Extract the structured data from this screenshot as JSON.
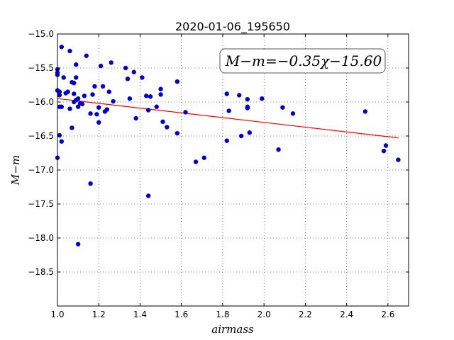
{
  "chart_data": {
    "type": "scatter",
    "title": "2020-01-06_195650",
    "xlabel": "airmass",
    "ylabel": "M−m",
    "xlim": [
      1.0,
      2.7
    ],
    "ylim": [
      -19.0,
      -15.0
    ],
    "y_inverted": true,
    "grid": true,
    "x_ticks": [
      1.0,
      1.2,
      1.4,
      1.6,
      1.8,
      2.0,
      2.2,
      2.4,
      2.6
    ],
    "x_tick_labels": [
      "1.0",
      "1.2",
      "1.4",
      "1.6",
      "1.8",
      "2.0",
      "2.2",
      "2.4",
      "2.6"
    ],
    "y_ticks": [
      -15.0,
      -15.5,
      -16.0,
      -16.5,
      -17.0,
      -17.5,
      -18.0,
      -18.5
    ],
    "y_tick_labels": [
      "−15.0",
      "−15.5",
      "−16.0",
      "−16.5",
      "−17.0",
      "−17.5",
      "−18.0",
      "−18.5"
    ],
    "annotation": "M−m=−0.35χ−15.60",
    "fit": {
      "slope": -0.35,
      "intercept": -15.6,
      "x_range": [
        1.0,
        2.65
      ],
      "color": "#ff0000"
    },
    "point_color": "#0000cc",
    "points": [
      [
        1.0,
        -15.52
      ],
      [
        1.0,
        -15.57
      ],
      [
        1.0,
        -15.6
      ],
      [
        1.0,
        -15.83
      ],
      [
        1.01,
        -15.85
      ],
      [
        1.01,
        -15.9
      ],
      [
        1.01,
        -16.07
      ],
      [
        1.0,
        -16.82
      ],
      [
        1.01,
        -16.49
      ],
      [
        1.02,
        -16.58
      ],
      [
        1.02,
        -15.19
      ],
      [
        1.03,
        -15.64
      ],
      [
        1.04,
        -15.87
      ],
      [
        1.02,
        -16.07
      ],
      [
        1.05,
        -15.85
      ],
      [
        1.06,
        -15.25
      ],
      [
        1.07,
        -15.71
      ],
      [
        1.06,
        -16.1
      ],
      [
        1.07,
        -16.38
      ],
      [
        1.08,
        -15.72
      ],
      [
        1.09,
        -15.64
      ],
      [
        1.09,
        -15.45
      ],
      [
        1.08,
        -15.88
      ],
      [
        1.08,
        -16.0
      ],
      [
        1.09,
        -15.97
      ],
      [
        1.1,
        -15.95
      ],
      [
        1.1,
        -16.07
      ],
      [
        1.1,
        -18.09
      ],
      [
        1.11,
        -16.02
      ],
      [
        1.12,
        -16.03
      ],
      [
        1.13,
        -15.91
      ],
      [
        1.14,
        -15.32
      ],
      [
        1.16,
        -17.2
      ],
      [
        1.16,
        -16.17
      ],
      [
        1.17,
        -15.89
      ],
      [
        1.18,
        -15.77
      ],
      [
        1.19,
        -16.18
      ],
      [
        1.2,
        -16.3
      ],
      [
        1.2,
        -16.08
      ],
      [
        1.21,
        -15.47
      ],
      [
        1.22,
        -15.77
      ],
      [
        1.23,
        -16.14
      ],
      [
        1.24,
        -16.11
      ],
      [
        1.25,
        -15.85
      ],
      [
        1.26,
        -15.42
      ],
      [
        1.27,
        -15.99
      ],
      [
        1.33,
        -15.5
      ],
      [
        1.34,
        -15.66
      ],
      [
        1.35,
        -15.95
      ],
      [
        1.37,
        -15.56
      ],
      [
        1.38,
        -16.24
      ],
      [
        1.41,
        -15.64
      ],
      [
        1.43,
        -15.91
      ],
      [
        1.44,
        -16.12
      ],
      [
        1.44,
        -17.38
      ],
      [
        1.45,
        -15.92
      ],
      [
        1.48,
        -16.07
      ],
      [
        1.5,
        -15.81
      ],
      [
        1.5,
        -15.89
      ],
      [
        1.51,
        -16.29
      ],
      [
        1.53,
        -16.37
      ],
      [
        1.58,
        -15.7
      ],
      [
        1.58,
        -16.46
      ],
      [
        1.62,
        -16.15
      ],
      [
        1.67,
        -16.88
      ],
      [
        1.71,
        -16.82
      ],
      [
        1.82,
        -15.88
      ],
      [
        1.82,
        -16.57
      ],
      [
        1.83,
        -16.13
      ],
      [
        1.88,
        -15.9
      ],
      [
        1.89,
        -16.5
      ],
      [
        1.92,
        -15.96
      ],
      [
        1.92,
        -16.07
      ],
      [
        1.92,
        -16.09
      ],
      [
        1.93,
        -16.45
      ],
      [
        1.99,
        -15.95
      ],
      [
        2.07,
        -16.7
      ],
      [
        2.09,
        -16.08
      ],
      [
        2.14,
        -16.17
      ],
      [
        2.49,
        -16.14
      ],
      [
        2.58,
        -16.72
      ],
      [
        2.59,
        -16.64
      ],
      [
        2.65,
        -16.85
      ]
    ]
  }
}
